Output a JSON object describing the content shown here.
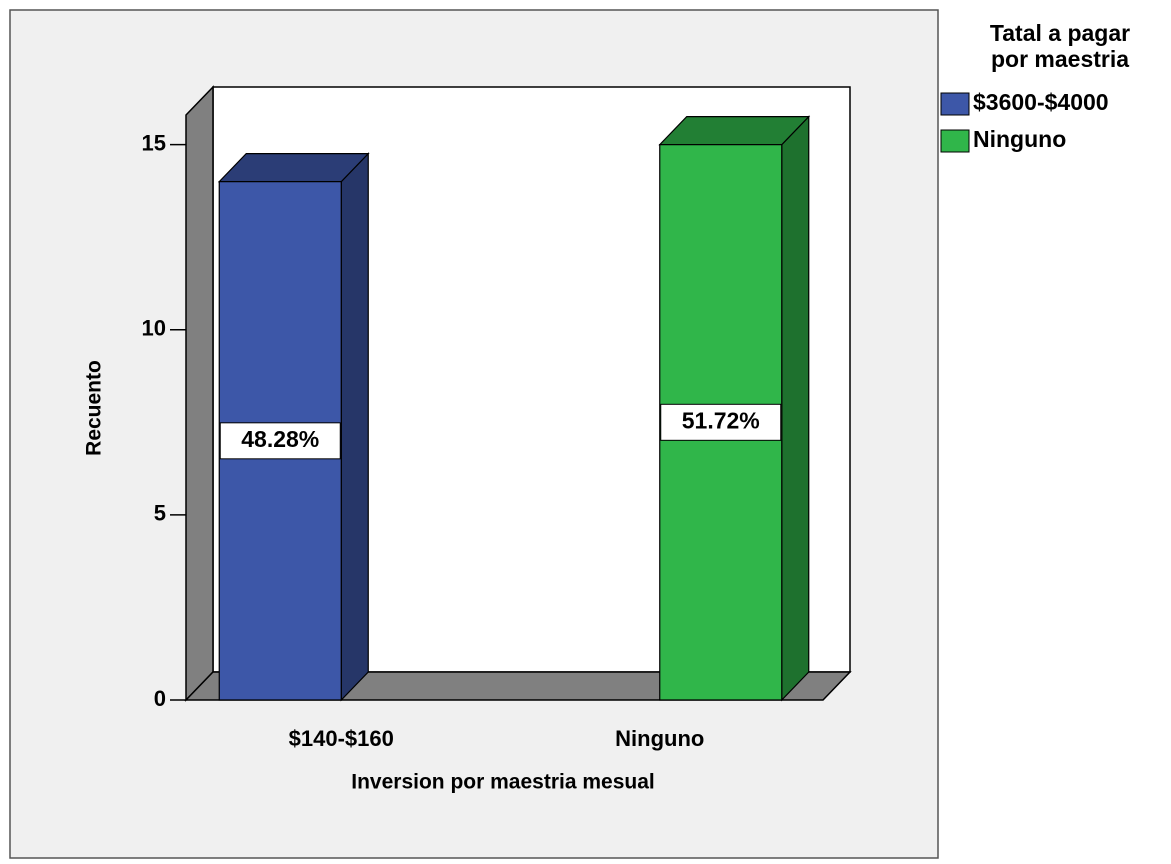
{
  "chart_data": {
    "type": "bar3d",
    "x_label": "Inversion por maestria mesual",
    "y_label": "Recuento",
    "legend_title": [
      "Tatal a pagar",
      "por maestria"
    ],
    "categories": [
      "$140-$160",
      "Ninguno"
    ],
    "series": [
      {
        "name": "$3600-$4000",
        "color": "#3d57a8",
        "values": [
          14,
          null
        ],
        "labels": [
          "48.28%",
          null
        ]
      },
      {
        "name": "Ninguno",
        "color": "#30b64a",
        "values": [
          null,
          15
        ],
        "labels": [
          null,
          "51.72%"
        ]
      }
    ],
    "ylim": [
      0,
      15.8
    ],
    "yticks": [
      0,
      5,
      10,
      15
    ],
    "legend": "right"
  }
}
